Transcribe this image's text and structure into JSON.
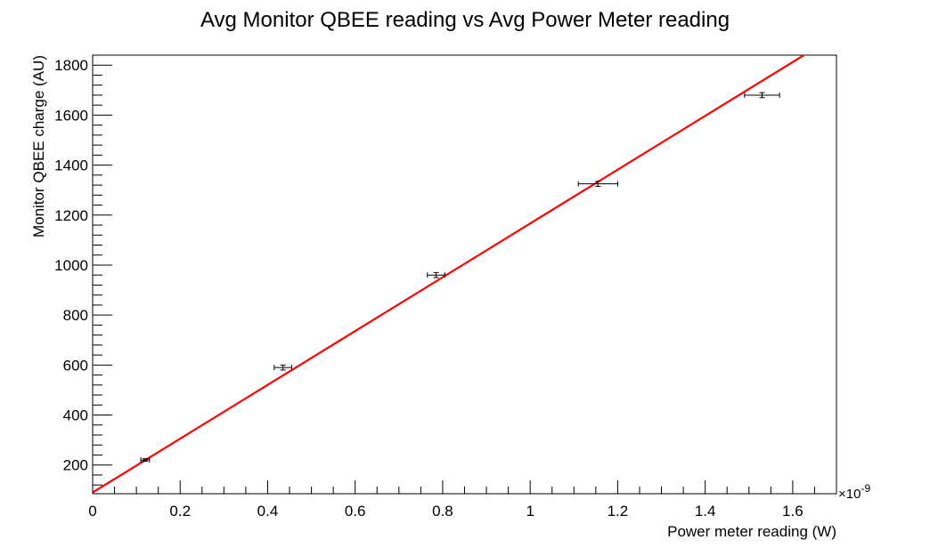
{
  "chart_data": {
    "type": "scatter",
    "title": "Avg Monitor QBEE reading vs Avg Power Meter reading",
    "xlabel": "Power meter reading (W)",
    "ylabel": "Monitor QBEE charge (AU)",
    "x_exponent_label": "×10",
    "x_exponent_power": "-9",
    "xlim": [
      0,
      1.7
    ],
    "ylim": [
      85,
      1840
    ],
    "x_ticks": [
      0,
      0.2,
      0.4,
      0.6,
      0.8,
      1.0,
      1.2,
      1.4,
      1.6
    ],
    "x_tick_labels": [
      "0",
      "0.2",
      "0.4",
      "0.6",
      "0.8",
      "1",
      "1.2",
      "1.4",
      "1.6"
    ],
    "y_ticks": [
      200,
      400,
      600,
      800,
      1000,
      1200,
      1400,
      1600,
      1800
    ],
    "y_tick_labels": [
      "200",
      "400",
      "600",
      "800",
      "1000",
      "1200",
      "1400",
      "1600",
      "1800"
    ],
    "grid": false,
    "points": [
      {
        "x": 0.12,
        "y": 220,
        "xerr": 0.01,
        "yerr": 5
      },
      {
        "x": 0.435,
        "y": 590,
        "xerr": 0.02,
        "yerr": 10
      },
      {
        "x": 0.785,
        "y": 960,
        "xerr": 0.02,
        "yerr": 10
      },
      {
        "x": 1.155,
        "y": 1325,
        "xerr": 0.045,
        "yerr": 10
      },
      {
        "x": 1.53,
        "y": 1680,
        "xerr": 0.04,
        "yerr": 10
      }
    ],
    "fit": {
      "x": [
        0,
        1.7
      ],
      "y": [
        90,
        1920
      ],
      "color": "#ff0000"
    },
    "marker_color": "#000000"
  }
}
